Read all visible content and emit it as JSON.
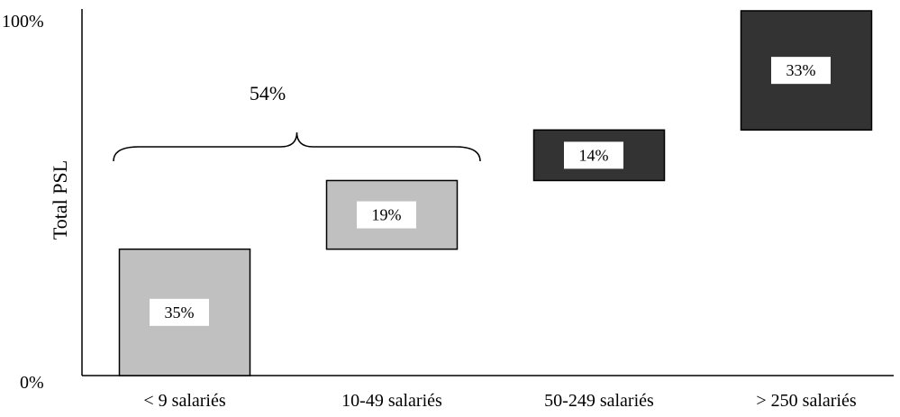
{
  "chart_data": {
    "type": "bar",
    "subtype": "waterfall-cumulative",
    "ylabel": "Total PSL",
    "xlabel": "",
    "ylim": [
      0,
      100
    ],
    "y_ticks": [
      "0%",
      "100%"
    ],
    "categories": [
      "< 9 salariés",
      "10-49 salariés",
      "50-249 salariés",
      "> 250 salariés"
    ],
    "values": [
      35,
      19,
      14,
      33
    ],
    "value_labels": [
      "35%",
      "19%",
      "14%",
      "33%"
    ],
    "colors": [
      "#c0c0c0",
      "#c0c0c0",
      "#333333",
      "#333333"
    ],
    "annotation": {
      "text": "54%",
      "spans_categories": [
        "< 9 salariés",
        "10-49 salariés"
      ]
    },
    "grid": false,
    "legend": "none"
  }
}
